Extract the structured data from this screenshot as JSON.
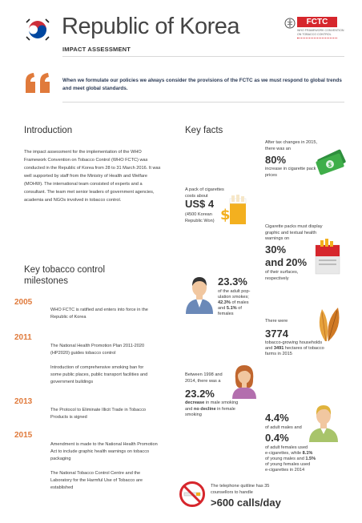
{
  "header": {
    "title": "Republic of Korea",
    "subtitle": "IMPACT ASSESSMENT",
    "fctc_logo": "FCTC",
    "fctc_sub1": "WHO FRAMEWORK CONVENTION",
    "fctc_sub2": "ON TOBACCO CONTROL"
  },
  "quote": {
    "text": "When we formulate our policies we always consider the provisions of the FCTC as we must respond to global trends and meet global standards."
  },
  "introduction": {
    "heading": "Introduction",
    "body": "The impact assessment for the implementation of the WHO Framework Convention on Tobacco Control (WHO FCTC) was conducted in the Republic of Korea from 28 to 31 March 2016. It was well supported by staff from the Ministry of Health and Welfare (MOHW). The international team consisted of experts and a consultant. The team met senior leaders of government agencies, academia and NGOs involved in tobacco control."
  },
  "milestones": {
    "heading_line1": "Key tobacco control",
    "heading_line2": "milestones",
    "items": [
      {
        "year": "2005",
        "texts": [
          "WHO FCTC is ratified and enters into force in the Republic of Korea"
        ]
      },
      {
        "year": "2011",
        "texts": [
          "The National Health Promotion Plan 2011-2020 (HP2020) guides tobacco control",
          "Introduction of comprehensive smoking ban for some public places, public transport facilities and government buildings"
        ]
      },
      {
        "year": "2013",
        "texts": [
          "The Protocol to Eliminate Illicit Trade in Tobacco Products is signed"
        ]
      },
      {
        "year": "2015",
        "texts": [
          "Amendment is made to the National Health Promotion Act to include graphic health warnings on tobacco packaging",
          "The National Tobacco Control Centre and the Laboratory for the Harmful Use of Tobacco are established"
        ]
      }
    ]
  },
  "key_facts": {
    "heading": "Key facts",
    "tax": {
      "pre": "After tax changes in 2015, there was an",
      "value": "80%",
      "post": "increase in cigarette pack prices"
    },
    "pack": {
      "pre": "A pack of cigarettes costs about",
      "value": "US$ 4",
      "post": "(4500 Korean Republic Won)"
    },
    "warnings": {
      "pre": "Cigarette packs must display graphic and textual health warnings on",
      "value1": "30%",
      "and": "and",
      "value2": "20%",
      "post": "of their surfaces, respectively"
    },
    "smokers": {
      "value": "23.3%",
      "line1": "of the adult pop-",
      "line2": "ulation smokes;",
      "males_val": "42.3%",
      "males_txt": "of males",
      "and": "and",
      "females_val": "5.1%",
      "females_txt": "of",
      "females_line": "females"
    },
    "farms": {
      "pre": "There were",
      "value": "3774",
      "line1": "tobacco-growing households",
      "and": "and",
      "hectares": "3491",
      "line2": "hectares of tobacco",
      "line3": "farms in 2015"
    },
    "decrease": {
      "pre": "Between 1998 and 2014, there was a",
      "value": "23.2%",
      "word1": "decrease",
      "mid": "in male smoking and",
      "word2": "no decline",
      "post": "in female smoking"
    },
    "ecig": {
      "value1": "4.4%",
      "mid": "of adult males and",
      "value2": "0.4%",
      "line1": "of adult females used",
      "line2": "e-cigarettes, while",
      "young_m": "8.1%",
      "line3": "of young males and",
      "young_f": "1.5%",
      "line4": "of young females used",
      "line5": "e-cigarettes in 2014"
    },
    "quitline": {
      "pre": "The telephone quitline has 35 counsellors to handle",
      "value": ">600 calls/day"
    }
  },
  "colors": {
    "accent": "#e07a3b",
    "quote_mark": "#e07a3b",
    "fctc_red": "#d6262c",
    "money_green": "#3fae49"
  }
}
